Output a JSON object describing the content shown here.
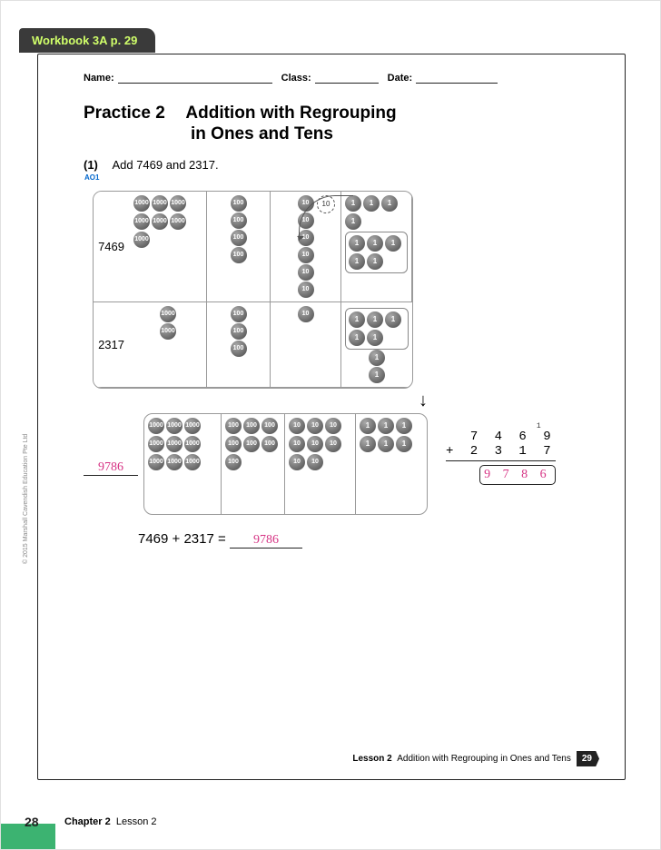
{
  "tab": "Workbook 3A p. 29",
  "fields": {
    "name": "Name:",
    "class": "Class:",
    "date": "Date:"
  },
  "title": {
    "practice": "Practice",
    "num": "2",
    "line1": "Addition with Regrouping",
    "line2": "in Ones and Tens"
  },
  "question": {
    "num": "(1)",
    "ao": "AO1",
    "text": "Add 7469 and 2317."
  },
  "rows": {
    "r1": "7469",
    "r2": "2317"
  },
  "discs": {
    "th": "1000",
    "h": "100",
    "t": "10",
    "o": "1",
    "r1_th": 7,
    "r1_h": 4,
    "r1_t": 6,
    "r1_o": 9,
    "r2_th": 2,
    "r2_h": 3,
    "r2_t": 1,
    "r2_o": 7,
    "res_th": 9,
    "res_h": 7,
    "res_t": 8,
    "res_o": 6
  },
  "colors": {
    "disc_light": "#aaaaaa",
    "disc_dark": "#666666",
    "answer": "#d63384",
    "tab_bg": "#3a3a3a",
    "tab_text": "#d0ff6a",
    "green": "#3cb371"
  },
  "answers": {
    "side": "9786",
    "boxed": "9 7 8 6",
    "equation": "9786"
  },
  "vertical": {
    "carry": "1",
    "line1": "7 4 6 9",
    "line2": "+ 2 3 1 7"
  },
  "equation_text": "7469 + 2317 =",
  "footer": {
    "lesson_bold": "Lesson 2",
    "lesson_text": "Addition with Regrouping in Ones and Tens",
    "page": "29"
  },
  "outer": {
    "page": "28",
    "chapter_bold": "Chapter 2",
    "chapter_text": "Lesson 2"
  },
  "copyright": "© 2015 Marshall Cavendish Education Pte Ltd"
}
